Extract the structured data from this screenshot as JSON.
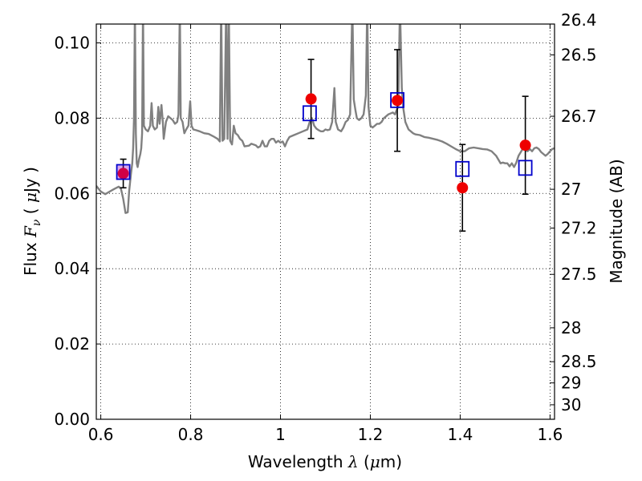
{
  "chart_data": {
    "type": "scatter",
    "title": "",
    "xlabel": "Wavelength  λ (μm)",
    "ylabel": "Flux  F_ν  ( μJy )",
    "ylabel_parts": {
      "pre": "Flux  ",
      "sym": "F",
      "sub": "ν",
      "mid": "  ( ",
      "mu": "μ",
      "post": "Jy )"
    },
    "xlabel_parts": {
      "pre": "Wavelength  ",
      "sym": "λ",
      "mid": " (",
      "mu": "μ",
      "post": "m)"
    },
    "y2label": "Magnitude (AB)",
    "xlim": [
      0.59,
      1.61
    ],
    "ylim": [
      0.0,
      0.105
    ],
    "grid": true,
    "xticks": [
      {
        "v": 0.6,
        "label": "0.6"
      },
      {
        "v": 0.8,
        "label": "0.8"
      },
      {
        "v": 1.0,
        "label": "1"
      },
      {
        "v": 1.2,
        "label": "1.2"
      },
      {
        "v": 1.4,
        "label": "1.4"
      },
      {
        "v": 1.6,
        "label": "1.6"
      }
    ],
    "yticks": [
      {
        "v": 0.0,
        "label": "0.00"
      },
      {
        "v": 0.02,
        "label": "0.02"
      },
      {
        "v": 0.04,
        "label": "0.04"
      },
      {
        "v": 0.06,
        "label": "0.06"
      },
      {
        "v": 0.08,
        "label": "0.08"
      },
      {
        "v": 0.1,
        "label": "0.10"
      }
    ],
    "y2ticks": [
      {
        "label": "26.4",
        "flux": 0.1061
      },
      {
        "label": "26.5",
        "flux": 0.0968
      },
      {
        "label": "26.7",
        "flux": 0.0805
      },
      {
        "label": "27",
        "flux": 0.0611
      },
      {
        "label": "27.2",
        "flux": 0.0508
      },
      {
        "label": "27.5",
        "flux": 0.0385
      },
      {
        "label": "28",
        "flux": 0.0243
      },
      {
        "label": "28.5",
        "flux": 0.0153
      },
      {
        "label": "29",
        "flux": 0.00966
      },
      {
        "label": "30",
        "flux": 0.00385
      }
    ],
    "series": [
      {
        "kind": "spectrum",
        "color": "#808080",
        "points": [
          [
            0.59,
            0.062
          ],
          [
            0.6,
            0.0605
          ],
          [
            0.61,
            0.0598
          ],
          [
            0.62,
            0.0605
          ],
          [
            0.63,
            0.0612
          ],
          [
            0.64,
            0.0618
          ],
          [
            0.645,
            0.0612
          ],
          [
            0.65,
            0.0585
          ],
          [
            0.655,
            0.0548
          ],
          [
            0.66,
            0.055
          ],
          [
            0.663,
            0.0605
          ],
          [
            0.667,
            0.065
          ],
          [
            0.67,
            0.068
          ],
          [
            0.672,
            0.072
          ],
          [
            0.674,
            0.08
          ],
          [
            0.676,
            0.11
          ],
          [
            0.678,
            0.076
          ],
          [
            0.68,
            0.068
          ],
          [
            0.682,
            0.067
          ],
          [
            0.685,
            0.069
          ],
          [
            0.688,
            0.0705
          ],
          [
            0.69,
            0.072
          ],
          [
            0.692,
            0.076
          ],
          [
            0.694,
            0.11
          ],
          [
            0.696,
            0.078
          ],
          [
            0.7,
            0.077
          ],
          [
            0.705,
            0.0765
          ],
          [
            0.71,
            0.078
          ],
          [
            0.713,
            0.084
          ],
          [
            0.716,
            0.078
          ],
          [
            0.72,
            0.077
          ],
          [
            0.725,
            0.0775
          ],
          [
            0.728,
            0.083
          ],
          [
            0.731,
            0.0785
          ],
          [
            0.735,
            0.0835
          ],
          [
            0.738,
            0.079
          ],
          [
            0.74,
            0.0745
          ],
          [
            0.745,
            0.079
          ],
          [
            0.75,
            0.0805
          ],
          [
            0.755,
            0.08
          ],
          [
            0.76,
            0.0795
          ],
          [
            0.765,
            0.0785
          ],
          [
            0.77,
            0.079
          ],
          [
            0.773,
            0.081
          ],
          [
            0.776,
            0.11
          ],
          [
            0.778,
            0.08
          ],
          [
            0.782,
            0.079
          ],
          [
            0.786,
            0.076
          ],
          [
            0.79,
            0.077
          ],
          [
            0.795,
            0.078
          ],
          [
            0.799,
            0.0845
          ],
          [
            0.802,
            0.078
          ],
          [
            0.806,
            0.077
          ],
          [
            0.812,
            0.0768
          ],
          [
            0.82,
            0.0765
          ],
          [
            0.83,
            0.076
          ],
          [
            0.84,
            0.0758
          ],
          [
            0.85,
            0.0752
          ],
          [
            0.86,
            0.0745
          ],
          [
            0.865,
            0.0738
          ],
          [
            0.868,
            0.11
          ],
          [
            0.871,
            0.074
          ],
          [
            0.875,
            0.0745
          ],
          [
            0.879,
            0.11
          ],
          [
            0.882,
            0.0745
          ],
          [
            0.885,
            0.11
          ],
          [
            0.888,
            0.074
          ],
          [
            0.892,
            0.073
          ],
          [
            0.896,
            0.078
          ],
          [
            0.9,
            0.076
          ],
          [
            0.905,
            0.0755
          ],
          [
            0.91,
            0.0745
          ],
          [
            0.915,
            0.074
          ],
          [
            0.92,
            0.0725
          ],
          [
            0.93,
            0.0727
          ],
          [
            0.935,
            0.0732
          ],
          [
            0.945,
            0.0728
          ],
          [
            0.95,
            0.0722
          ],
          [
            0.955,
            0.0725
          ],
          [
            0.96,
            0.074
          ],
          [
            0.965,
            0.0725
          ],
          [
            0.97,
            0.0725
          ],
          [
            0.975,
            0.074
          ],
          [
            0.98,
            0.0745
          ],
          [
            0.985,
            0.0745
          ],
          [
            0.99,
            0.0735
          ],
          [
            0.995,
            0.074
          ],
          [
            1.0,
            0.0735
          ],
          [
            1.005,
            0.0738
          ],
          [
            1.01,
            0.0725
          ],
          [
            1.015,
            0.074
          ],
          [
            1.02,
            0.075
          ],
          [
            1.03,
            0.0755
          ],
          [
            1.04,
            0.076
          ],
          [
            1.05,
            0.0765
          ],
          [
            1.06,
            0.077
          ],
          [
            1.065,
            0.079
          ],
          [
            1.07,
            0.08
          ],
          [
            1.075,
            0.078
          ],
          [
            1.08,
            0.0772
          ],
          [
            1.085,
            0.0768
          ],
          [
            1.09,
            0.0765
          ],
          [
            1.095,
            0.0765
          ],
          [
            1.1,
            0.077
          ],
          [
            1.105,
            0.0768
          ],
          [
            1.11,
            0.077
          ],
          [
            1.115,
            0.079
          ],
          [
            1.12,
            0.088
          ],
          [
            1.123,
            0.079
          ],
          [
            1.128,
            0.077
          ],
          [
            1.135,
            0.0765
          ],
          [
            1.14,
            0.0775
          ],
          [
            1.145,
            0.079
          ],
          [
            1.15,
            0.0795
          ],
          [
            1.155,
            0.081
          ],
          [
            1.16,
            0.11
          ],
          [
            1.163,
            0.085
          ],
          [
            1.167,
            0.082
          ],
          [
            1.17,
            0.08
          ],
          [
            1.175,
            0.0795
          ],
          [
            1.18,
            0.08
          ],
          [
            1.185,
            0.081
          ],
          [
            1.19,
            0.086
          ],
          [
            1.193,
            0.11
          ],
          [
            1.196,
            0.083
          ],
          [
            1.2,
            0.078
          ],
          [
            1.205,
            0.0775
          ],
          [
            1.21,
            0.078
          ],
          [
            1.215,
            0.0785
          ],
          [
            1.22,
            0.0785
          ],
          [
            1.225,
            0.079
          ],
          [
            1.23,
            0.08
          ],
          [
            1.24,
            0.081
          ],
          [
            1.25,
            0.0815
          ],
          [
            1.255,
            0.081
          ],
          [
            1.258,
            0.082
          ],
          [
            1.262,
            0.083
          ],
          [
            1.266,
            0.11
          ],
          [
            1.27,
            0.088
          ],
          [
            1.273,
            0.083
          ],
          [
            1.278,
            0.079
          ],
          [
            1.285,
            0.077
          ],
          [
            1.29,
            0.0765
          ],
          [
            1.295,
            0.076
          ],
          [
            1.3,
            0.0757
          ],
          [
            1.31,
            0.0755
          ],
          [
            1.32,
            0.075
          ],
          [
            1.33,
            0.0748
          ],
          [
            1.34,
            0.0745
          ],
          [
            1.35,
            0.0742
          ],
          [
            1.36,
            0.0738
          ],
          [
            1.37,
            0.0732
          ],
          [
            1.38,
            0.0725
          ],
          [
            1.39,
            0.0718
          ],
          [
            1.4,
            0.0712
          ],
          [
            1.41,
            0.0712
          ],
          [
            1.42,
            0.072
          ],
          [
            1.43,
            0.0722
          ],
          [
            1.44,
            0.072
          ],
          [
            1.45,
            0.0718
          ],
          [
            1.46,
            0.0717
          ],
          [
            1.47,
            0.0712
          ],
          [
            1.48,
            0.07
          ],
          [
            1.485,
            0.069
          ],
          [
            1.49,
            0.068
          ],
          [
            1.495,
            0.0682
          ],
          [
            1.5,
            0.068
          ],
          [
            1.505,
            0.068
          ],
          [
            1.51,
            0.0672
          ],
          [
            1.515,
            0.068
          ],
          [
            1.52,
            0.067
          ],
          [
            1.525,
            0.0682
          ],
          [
            1.53,
            0.07
          ],
          [
            1.535,
            0.071
          ],
          [
            1.54,
            0.072
          ],
          [
            1.545,
            0.0715
          ],
          [
            1.55,
            0.0712
          ],
          [
            1.555,
            0.0718
          ],
          [
            1.56,
            0.0712
          ],
          [
            1.565,
            0.072
          ],
          [
            1.57,
            0.0722
          ],
          [
            1.575,
            0.0718
          ],
          [
            1.58,
            0.071
          ],
          [
            1.585,
            0.0705
          ],
          [
            1.59,
            0.07
          ],
          [
            1.595,
            0.0705
          ],
          [
            1.6,
            0.0712
          ],
          [
            1.605,
            0.0718
          ],
          [
            1.61,
            0.072
          ]
        ]
      },
      {
        "kind": "model",
        "color": "#0000cc",
        "x": [
          0.65,
          1.065,
          1.26,
          1.405,
          1.545
        ],
        "y": [
          0.0657,
          0.0813,
          0.0848,
          0.0665,
          0.0668
        ]
      },
      {
        "kind": "observed",
        "color": "#ee0000",
        "x": [
          0.65,
          1.068,
          1.26,
          1.405,
          1.545
        ],
        "y": [
          0.0653,
          0.0851,
          0.0847,
          0.0615,
          0.0728
        ],
        "err": [
          0.0038,
          0.0105,
          0.0135,
          0.0115,
          0.013
        ]
      }
    ]
  }
}
